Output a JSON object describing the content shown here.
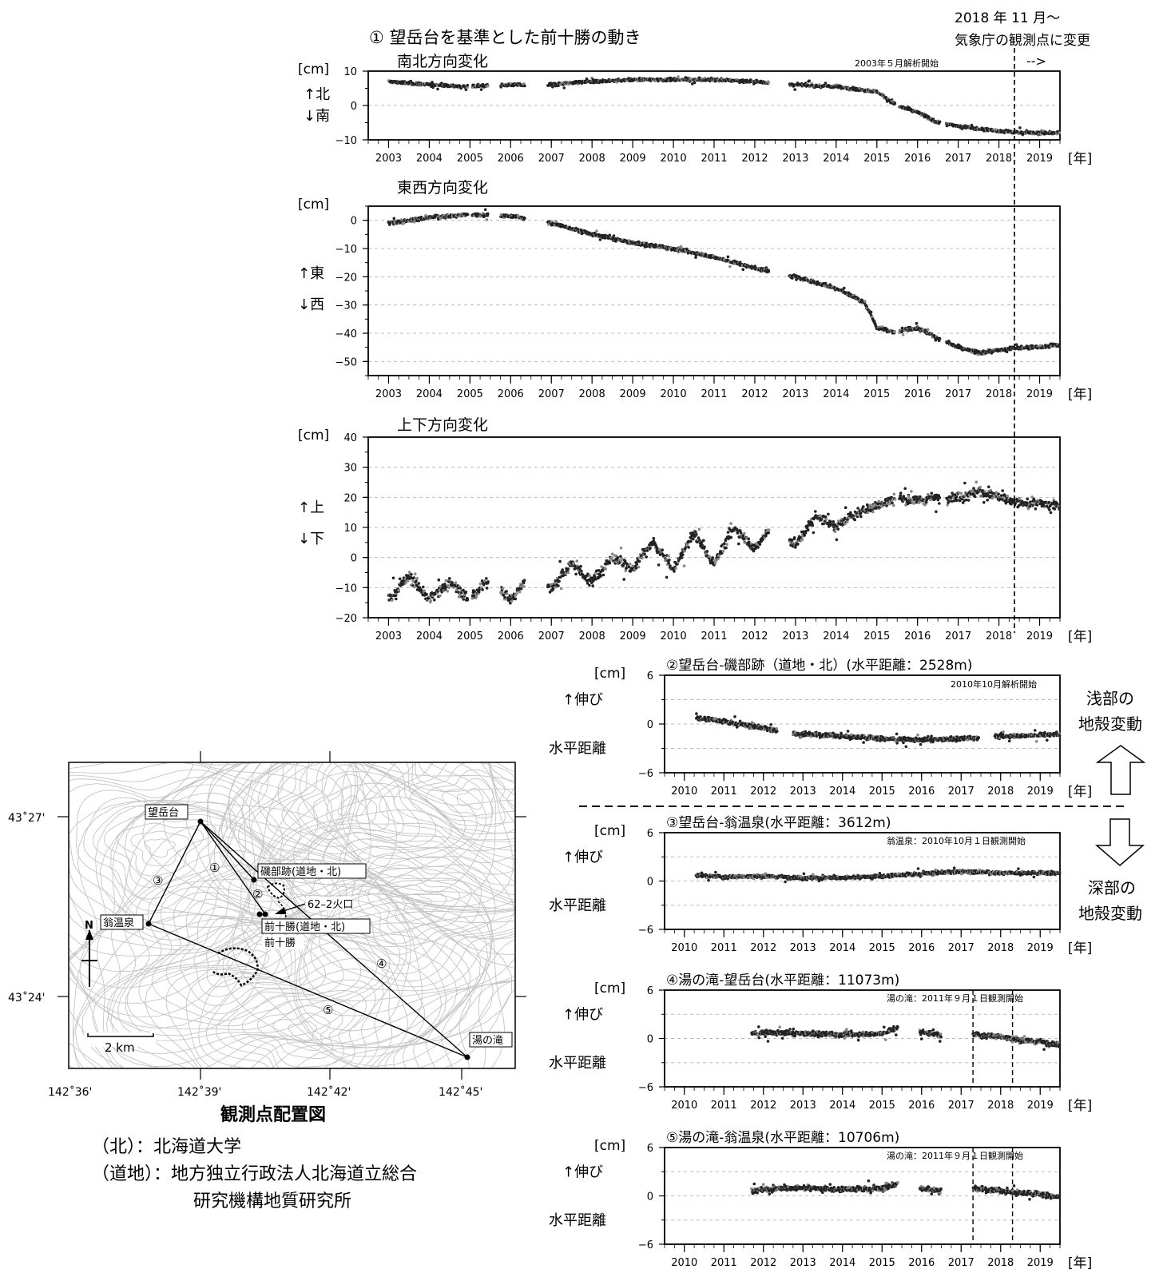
{
  "header": {
    "change_note_line1": "2018 年 11 月～",
    "change_note_line2": "気象庁の観測点に変更",
    "change_arrow": "-->",
    "main_title": "① 望岳台を基準とした前十勝の動き"
  },
  "labels": {
    "unit": "[cm]",
    "year_unit": "[年]",
    "extension": "↑伸び",
    "horizontal_distance": "水平距離"
  },
  "side_labels": {
    "shallow_1": "浅部の",
    "shallow_2": "地殻変動",
    "deep_1": "深部の",
    "deep_2": "地殻変動"
  },
  "map": {
    "title": "観測点配置図",
    "legend": [
      "（北）：北海道大学",
      "（道地）：地方独立行政法人北海道立総合",
      "研究機構地質研究所"
    ],
    "lat_labels": [
      "43˚27'",
      "43˚24'"
    ],
    "lon_labels": [
      "142˚36'",
      "142˚39'",
      "142˚42'",
      "142˚45'"
    ],
    "stations": {
      "bogakudai": "望岳台",
      "isobe": "磯部跡(道地・北)",
      "okina": "翁温泉",
      "maetokachi_dochi": "前十勝(道地・北)",
      "maetokachi": "前十勝",
      "yunotaki": "湯の滝"
    },
    "crater": "62–2火口",
    "north": "N",
    "scale": "2 km",
    "baseline_numbers": [
      "①",
      "②",
      "③",
      "④",
      "⑤"
    ]
  },
  "chart_data": [
    {
      "type": "scatter",
      "title": "南北方向変化",
      "annotation": "2003年５月解析開始",
      "ylabel_up": "↑北",
      "ylabel_down": "↓南",
      "ylim": [
        -10,
        10
      ],
      "yticks": [
        10,
        0,
        -10
      ],
      "xlim": [
        2002.5,
        2019.5
      ],
      "xticks": [
        "2003",
        "2004",
        "2005",
        "2006",
        "2007",
        "2008",
        "2009",
        "2010",
        "2011",
        "2012",
        "2013",
        "2014",
        "2015",
        "2016",
        "2017",
        "2018",
        "2019"
      ],
      "gaps": [
        [
          2004.95,
          2005.05
        ],
        [
          2005.45,
          2005.75
        ],
        [
          2006.35,
          2006.9
        ],
        [
          2012.35,
          2012.85
        ],
        [
          2015.45,
          2015.55
        ],
        [
          2016.55,
          2016.7
        ]
      ],
      "marker_year": 2018.85,
      "series": [
        {
          "x": [
            2003,
            2004,
            2005,
            2006,
            2007,
            2008,
            2009,
            2010,
            2011,
            2012,
            2013,
            2014,
            2015,
            2015.5,
            2016,
            2016.5,
            2017,
            2018,
            2018.85,
            2019.5
          ],
          "values": [
            7,
            6,
            5.5,
            6,
            6,
            7,
            7.5,
            7.5,
            7.5,
            7,
            6,
            5.5,
            4,
            0,
            -2,
            -5,
            -6,
            -7.5,
            -8,
            -8
          ]
        }
      ]
    },
    {
      "type": "scatter",
      "title": "東西方向変化",
      "ylabel_up": "↑東",
      "ylabel_down": "↓西",
      "ylim": [
        -55,
        5
      ],
      "yticks": [
        0,
        -10,
        -20,
        -30,
        -40,
        -50
      ],
      "xlim": [
        2002.5,
        2019.5
      ],
      "xticks": [
        "2003",
        "2004",
        "2005",
        "2006",
        "2007",
        "2008",
        "2009",
        "2010",
        "2011",
        "2012",
        "2013",
        "2014",
        "2015",
        "2016",
        "2017",
        "2018",
        "2019"
      ],
      "gaps": [
        [
          2004.95,
          2005.05
        ],
        [
          2005.45,
          2005.75
        ],
        [
          2006.35,
          2006.9
        ],
        [
          2012.35,
          2012.85
        ],
        [
          2015.45,
          2015.55
        ],
        [
          2016.55,
          2016.7
        ]
      ],
      "marker_year": 2018.85,
      "series": [
        {
          "x": [
            2003,
            2004,
            2005,
            2006,
            2007,
            2008,
            2009,
            2010,
            2011,
            2012,
            2013,
            2014,
            2014.7,
            2015,
            2015.4,
            2016,
            2016.4,
            2017,
            2017.5,
            2018,
            2018.5,
            2019,
            2019.5
          ],
          "values": [
            -1,
            1,
            2,
            1.5,
            -1,
            -5,
            -8,
            -10,
            -13,
            -17,
            -20,
            -24,
            -29,
            -38,
            -39.5,
            -38,
            -41,
            -45,
            -47,
            -46,
            -45,
            -45,
            -44
          ]
        }
      ]
    },
    {
      "type": "scatter",
      "title": "上下方向変化",
      "ylabel_up": "↑上",
      "ylabel_down": "↓下",
      "ylim": [
        -20,
        40
      ],
      "yticks": [
        40,
        30,
        20,
        10,
        0,
        -10,
        -20
      ],
      "xlim": [
        2002.5,
        2019.5
      ],
      "xticks": [
        "2003",
        "2004",
        "2005",
        "2006",
        "2007",
        "2008",
        "2009",
        "2010",
        "2011",
        "2012",
        "2013",
        "2014",
        "2015",
        "2016",
        "2017",
        "2018",
        "2019"
      ],
      "gaps": [
        [
          2004.95,
          2005.05
        ],
        [
          2005.45,
          2005.75
        ],
        [
          2006.35,
          2006.9
        ],
        [
          2012.35,
          2012.85
        ],
        [
          2015.45,
          2015.55
        ],
        [
          2016.55,
          2016.7
        ]
      ],
      "marker_year": 2018.85,
      "series": [
        {
          "x": [
            2003,
            2003.5,
            2004,
            2004.5,
            2005,
            2005.5,
            2006,
            2006.5,
            2007,
            2007.5,
            2008,
            2008.5,
            2009,
            2009.5,
            2010,
            2010.5,
            2011,
            2011.5,
            2012,
            2012.5,
            2013,
            2013.5,
            2014,
            2014.5,
            2015,
            2015.5,
            2016,
            2016.5,
            2017,
            2017.5,
            2018,
            2018.5,
            2019,
            2019.5
          ],
          "values": [
            -14,
            -6,
            -14,
            -8,
            -14,
            -7,
            -14,
            -6,
            -10,
            -2,
            -8,
            0,
            -4,
            5,
            -4,
            8,
            -2,
            10,
            3,
            12,
            4,
            14,
            10,
            15,
            17,
            20,
            19,
            20,
            20,
            22,
            20,
            18,
            18,
            17
          ]
        }
      ]
    },
    {
      "type": "scatter",
      "title": "②望岳台-磯部跡（道地・北）(水平距離：2528m)",
      "annotation": "2010年10月解析開始",
      "ylim": [
        -6,
        6
      ],
      "yticks": [
        6,
        0,
        -6
      ],
      "xlim": [
        2009.5,
        2019.5
      ],
      "xticks": [
        "2010",
        "2011",
        "2012",
        "2013",
        "2014",
        "2015",
        "2016",
        "2017",
        "2018",
        "2019"
      ],
      "gaps": [
        [
          2012.35,
          2012.75
        ],
        [
          2017.45,
          2017.85
        ]
      ],
      "series": [
        {
          "x": [
            2010.3,
            2011,
            2012,
            2012.8,
            2014,
            2015,
            2016,
            2017,
            2018,
            2019.5
          ],
          "values": [
            0.8,
            0.3,
            -0.5,
            -1.2,
            -1.5,
            -1.8,
            -2,
            -1.8,
            -1.5,
            -1.3
          ]
        }
      ]
    },
    {
      "type": "scatter",
      "title": "③望岳台-翁温泉(水平距離：3612m)",
      "annotation": "翁温泉：2010年10月１日観測開始",
      "ylim": [
        -6,
        6
      ],
      "yticks": [
        6,
        0,
        -6
      ],
      "xlim": [
        2009.5,
        2019.5
      ],
      "xticks": [
        "2010",
        "2011",
        "2012",
        "2013",
        "2014",
        "2015",
        "2016",
        "2017",
        "2018",
        "2019"
      ],
      "gaps": [],
      "series": [
        {
          "x": [
            2010.3,
            2011,
            2012,
            2013,
            2014,
            2015,
            2016,
            2017,
            2018,
            2019.5
          ],
          "values": [
            0.7,
            0.5,
            0.6,
            0.4,
            0.4,
            0.6,
            0.9,
            1.2,
            1.0,
            1.0
          ]
        }
      ]
    },
    {
      "type": "scatter",
      "title": "④湯の滝-望岳台(水平距離：11073m)",
      "annotation": "湯の滝：2011年９月１日観測開始",
      "ylim": [
        -6,
        6
      ],
      "yticks": [
        6,
        0,
        -6
      ],
      "xlim": [
        2009.5,
        2019.5
      ],
      "xticks": [
        "2010",
        "2011",
        "2012",
        "2013",
        "2014",
        "2015",
        "2016",
        "2017",
        "2018",
        "2019"
      ],
      "gaps": [
        [
          2015.4,
          2015.95
        ],
        [
          2016.5,
          2017.3
        ]
      ],
      "marker_years": [
        2017.3,
        2018.3
      ],
      "series": [
        {
          "x": [
            2011.7,
            2012,
            2013,
            2014,
            2015,
            2015.4,
            2016,
            2016.5,
            2017.3,
            2018,
            2018.5,
            2019,
            2019.5
          ],
          "values": [
            0.6,
            0.7,
            0.6,
            0.5,
            0.6,
            1.3,
            0.8,
            0.4,
            0.5,
            0.2,
            -0.2,
            -0.4,
            -0.8
          ]
        }
      ]
    },
    {
      "type": "scatter",
      "title": "⑤湯の滝-翁温泉(水平距離：10706m)",
      "annotation": "湯の滝：2011年９月１日観測開始",
      "ylim": [
        -6,
        6
      ],
      "yticks": [
        6,
        0,
        -6
      ],
      "xlim": [
        2009.5,
        2019.5
      ],
      "xticks": [
        "2010",
        "2011",
        "2012",
        "2013",
        "2014",
        "2015",
        "2016",
        "2017",
        "2018",
        "2019"
      ],
      "gaps": [
        [
          2015.4,
          2015.95
        ],
        [
          2016.5,
          2017.3
        ]
      ],
      "marker_years": [
        2017.3,
        2018.3
      ],
      "series": [
        {
          "x": [
            2011.7,
            2012,
            2013,
            2014,
            2015,
            2015.4,
            2016,
            2016.5,
            2017.3,
            2018,
            2018.5,
            2019,
            2019.5
          ],
          "values": [
            0.7,
            0.8,
            1.0,
            0.8,
            0.9,
            1.5,
            0.9,
            0.7,
            0.9,
            0.6,
            0.4,
            0.2,
            -0.2
          ]
        }
      ]
    }
  ]
}
